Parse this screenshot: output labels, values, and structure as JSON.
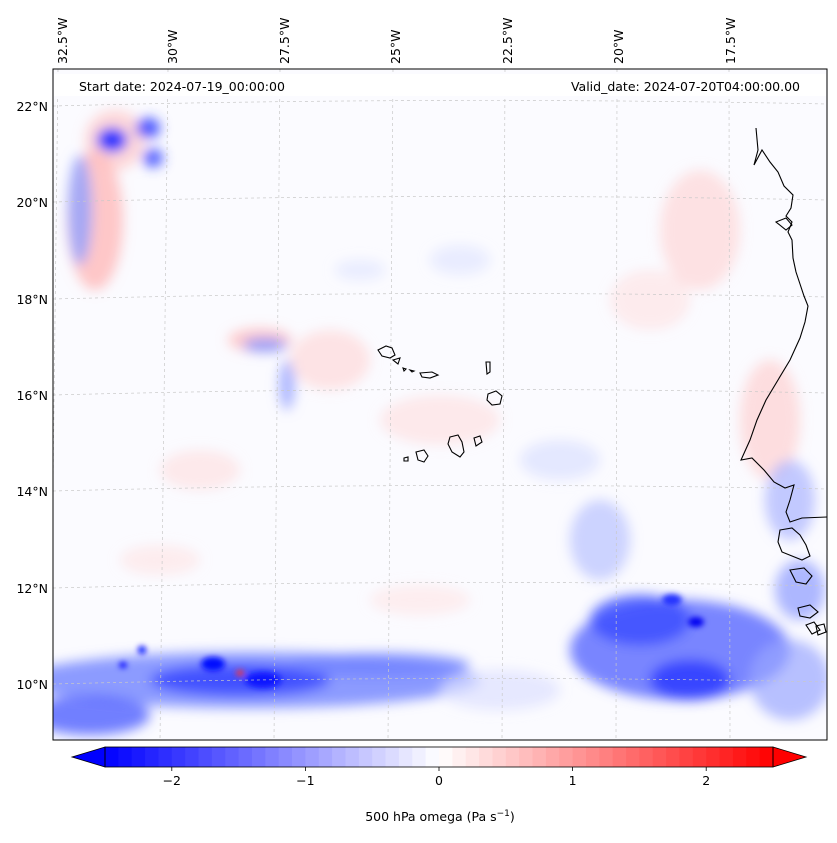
{
  "map": {
    "start_date": "Start date: 2024-07-19_00:00:00",
    "valid_date": "Valid_date: 2024-07-20T04:00:00.00",
    "lon_labels": [
      "32.5°W",
      "30°W",
      "27.5°W",
      "25°W",
      "22.5°W",
      "20°W",
      "17.5°W"
    ],
    "lat_labels": [
      "22°N",
      "20°N",
      "18°N",
      "16°N",
      "14°N",
      "12°N",
      "10°N"
    ],
    "field": "500 hPa omega",
    "colors": {
      "negative": "#0000ff",
      "zero": "#ffffff",
      "positive": "#ff0000",
      "coast": "#000000",
      "grid": "#c8c8c8"
    }
  },
  "colorbar": {
    "label_main": "500 hPa omega (Pa s",
    "label_exp": "−1",
    "label_close": ")",
    "range": [
      -2.5,
      2.5
    ],
    "ticks": [
      "−2",
      "−1",
      "0",
      "1",
      "2"
    ],
    "tick_values": [
      -2,
      -1,
      0,
      1,
      2
    ]
  }
}
